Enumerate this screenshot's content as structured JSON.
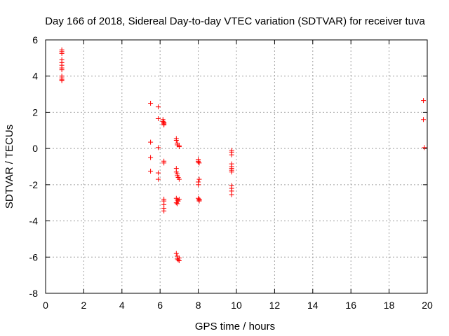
{
  "chart_data": {
    "type": "scatter",
    "title": "Day 166 of 2018, Sidereal Day-to-day VTEC variation (SDTVAR) for receiver tuva",
    "xlabel": "GPS time / hours",
    "ylabel": "SDTVAR / TECUs",
    "xlim": [
      0,
      20
    ],
    "ylim": [
      -8,
      6
    ],
    "xticks": [
      0,
      2,
      4,
      6,
      8,
      10,
      12,
      14,
      16,
      18,
      20
    ],
    "yticks": [
      -8,
      -6,
      -4,
      -2,
      0,
      2,
      4,
      6
    ],
    "grid": true,
    "marker": "+",
    "marker_color": "#ff0000",
    "series": [
      {
        "name": "SDTVAR",
        "points": [
          [
            0.85,
            5.45
          ],
          [
            0.85,
            5.35
          ],
          [
            0.85,
            5.25
          ],
          [
            0.85,
            4.9
          ],
          [
            0.85,
            4.75
          ],
          [
            0.85,
            4.6
          ],
          [
            0.85,
            4.45
          ],
          [
            0.85,
            4.35
          ],
          [
            0.85,
            4.0
          ],
          [
            0.85,
            3.9
          ],
          [
            0.85,
            3.8
          ],
          [
            0.85,
            3.75
          ],
          [
            5.5,
            2.5
          ],
          [
            5.5,
            0.35
          ],
          [
            5.5,
            -0.5
          ],
          [
            5.5,
            -1.25
          ],
          [
            5.9,
            2.3
          ],
          [
            5.9,
            1.65
          ],
          [
            5.9,
            0.05
          ],
          [
            5.9,
            -1.35
          ],
          [
            5.9,
            -1.7
          ],
          [
            6.15,
            1.6
          ],
          [
            6.15,
            1.5
          ],
          [
            6.2,
            1.45
          ],
          [
            6.2,
            1.4
          ],
          [
            6.2,
            1.35
          ],
          [
            6.2,
            1.3
          ],
          [
            6.2,
            -0.7
          ],
          [
            6.2,
            -0.8
          ],
          [
            6.2,
            -2.8
          ],
          [
            6.2,
            -2.9
          ],
          [
            6.2,
            -3.1
          ],
          [
            6.2,
            -3.3
          ],
          [
            6.2,
            -3.45
          ],
          [
            6.85,
            0.55
          ],
          [
            6.85,
            0.45
          ],
          [
            6.9,
            0.3
          ],
          [
            6.9,
            0.2
          ],
          [
            7.0,
            0.15
          ],
          [
            7.0,
            0.1
          ],
          [
            6.85,
            -1.1
          ],
          [
            6.85,
            -1.3
          ],
          [
            6.9,
            -1.4
          ],
          [
            6.9,
            -1.5
          ],
          [
            6.95,
            -1.6
          ],
          [
            7.0,
            -1.7
          ],
          [
            6.85,
            -2.75
          ],
          [
            6.9,
            -2.85
          ],
          [
            6.95,
            -2.9
          ],
          [
            7.0,
            -2.8
          ],
          [
            6.85,
            -3.0
          ],
          [
            6.9,
            -3.05
          ],
          [
            6.85,
            -5.8
          ],
          [
            6.9,
            -5.95
          ],
          [
            6.9,
            -6.1
          ],
          [
            6.95,
            -6.15
          ],
          [
            7.0,
            -6.2
          ],
          [
            7.0,
            -6.05
          ],
          [
            8.0,
            -0.6
          ],
          [
            8.0,
            -0.7
          ],
          [
            8.0,
            -0.75
          ],
          [
            8.05,
            -0.8
          ],
          [
            8.05,
            -1.7
          ],
          [
            8.0,
            -1.85
          ],
          [
            8.0,
            -2.0
          ],
          [
            8.0,
            -2.75
          ],
          [
            8.05,
            -2.8
          ],
          [
            8.05,
            -2.85
          ],
          [
            8.05,
            -2.9
          ],
          [
            9.75,
            -0.1
          ],
          [
            9.75,
            -0.2
          ],
          [
            9.75,
            -0.35
          ],
          [
            9.75,
            -0.85
          ],
          [
            9.75,
            -1.0
          ],
          [
            9.75,
            -1.1
          ],
          [
            9.75,
            -1.2
          ],
          [
            9.75,
            -1.3
          ],
          [
            9.75,
            -2.05
          ],
          [
            9.75,
            -2.2
          ],
          [
            9.75,
            -2.35
          ],
          [
            9.75,
            -2.55
          ],
          [
            19.8,
            2.65
          ],
          [
            19.8,
            1.6
          ],
          [
            19.85,
            0.05
          ]
        ]
      }
    ]
  }
}
